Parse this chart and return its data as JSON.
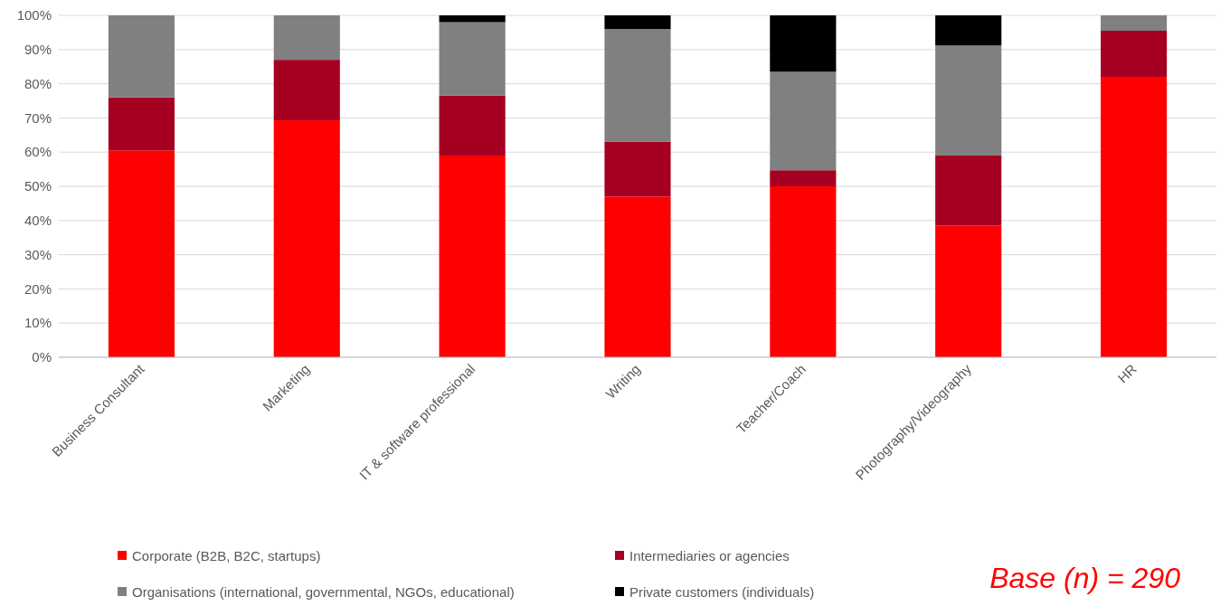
{
  "chart_data": {
    "type": "bar",
    "stacked": true,
    "categories": [
      "Business Consultant",
      "Marketing",
      "IT & software professional",
      "Writing",
      "Teacher/Coach",
      "Photography/Videography",
      "HR"
    ],
    "series": [
      {
        "name": "Corporate (B2B, B2C, startups)",
        "color": "#ff0000",
        "values": [
          60.5,
          69.3,
          59,
          47,
          50,
          38.5,
          82
        ]
      },
      {
        "name": "Intermediaries or agencies",
        "color": "#a50021",
        "values": [
          15.5,
          17.7,
          17.5,
          16,
          4.7,
          20.5,
          13.5
        ]
      },
      {
        "name": "Organisations (international, governmental, NGOs, educational)",
        "color": "#808080",
        "values": [
          24,
          13,
          21.5,
          33,
          28.8,
          32.2,
          4.5
        ]
      },
      {
        "name": "Private customers (individuals)",
        "color": "#000000",
        "values": [
          0,
          0,
          2,
          4,
          16.5,
          8.8,
          0
        ]
      }
    ],
    "ylim": [
      0,
      100
    ],
    "yticks": [
      {
        "value": 0,
        "label": "0%"
      },
      {
        "value": 10,
        "label": "10%"
      },
      {
        "value": 20,
        "label": "20%"
      },
      {
        "value": 30,
        "label": "30%"
      },
      {
        "value": 40,
        "label": "40%"
      },
      {
        "value": 50,
        "label": "50%"
      },
      {
        "value": 60,
        "label": "60%"
      },
      {
        "value": 70,
        "label": "70%"
      },
      {
        "value": 80,
        "label": "80%"
      },
      {
        "value": 90,
        "label": "90%"
      },
      {
        "value": 100,
        "label": "100%"
      }
    ],
    "grid": "y",
    "legend": "bottom",
    "annotations": [
      "Base (n) = 290"
    ]
  }
}
